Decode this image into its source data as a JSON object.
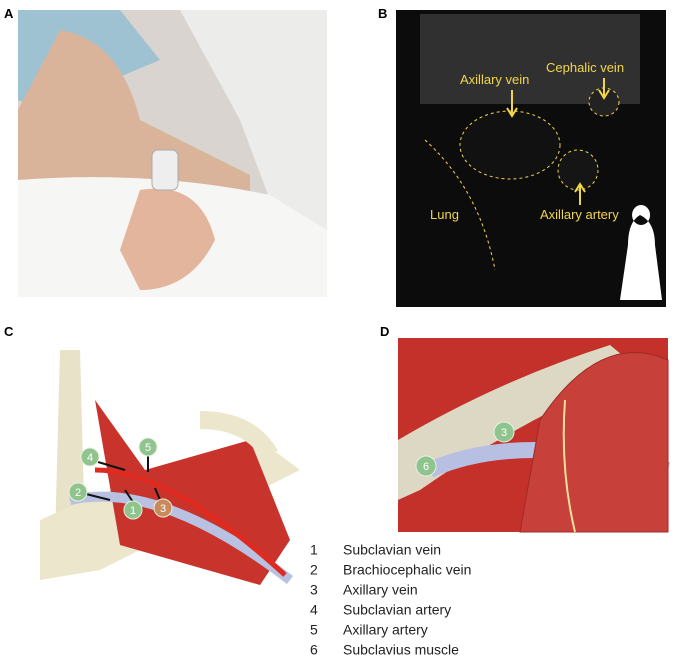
{
  "panels": [
    {
      "letter": "A"
    },
    {
      "letter": "B"
    },
    {
      "letter": "C"
    },
    {
      "letter": "D"
    }
  ],
  "ultrasound_labels": {
    "axillary_vein": "Axillary vein",
    "cephalic_vein": "Cephalic vein",
    "lung": "Lung",
    "axillary_artery": "Axillary artery"
  },
  "panel_c_markers": [
    "4",
    "5",
    "2",
    "1",
    "3"
  ],
  "panel_d_markers": [
    "3",
    "6"
  ],
  "legend": [
    {
      "number": "1",
      "label": "Subclavian vein"
    },
    {
      "number": "2",
      "label": "Brachiocephalic vein"
    },
    {
      "number": "3",
      "label": "Axillary vein"
    },
    {
      "number": "4",
      "label": "Subclavian artery"
    },
    {
      "number": "5",
      "label": "Axillary artery"
    },
    {
      "number": "6",
      "label": "Subclavius muscle"
    }
  ]
}
